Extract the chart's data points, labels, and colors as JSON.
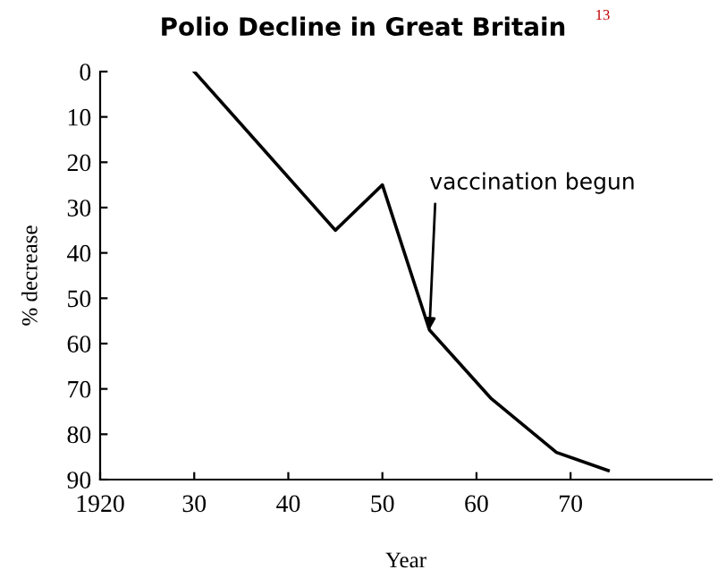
{
  "chart_data": {
    "type": "line",
    "title": "Polio Decline in Great Britain",
    "xlabel": "Year",
    "ylabel": "% decrease",
    "x": [
      1930,
      1945,
      1950,
      1955,
      1961.5,
      1968.5,
      1974
    ],
    "series": [
      {
        "color": "#000000",
        "values": [
          0,
          35,
          25,
          57,
          72,
          84,
          88
        ]
      }
    ],
    "annotations": [
      {
        "text": "vaccination begun",
        "x": 1955,
        "y": 57
      },
      "13"
    ],
    "xlim": [
      1920,
      1985
    ],
    "ylim": [
      90,
      0
    ],
    "xticks": [
      1920,
      {
        "value": 1930,
        "label": "30"
      },
      {
        "value": 1940,
        "label": "40"
      },
      {
        "value": 1950,
        "label": "50"
      },
      {
        "value": 1960,
        "label": "60"
      },
      {
        "value": 1970,
        "label": "70"
      }
    ],
    "yticks": [
      0,
      10,
      20,
      30,
      40,
      50,
      60,
      70,
      80,
      90
    ],
    "grid": false,
    "legend": false,
    "marker": "none",
    "line_style": "solid"
  }
}
